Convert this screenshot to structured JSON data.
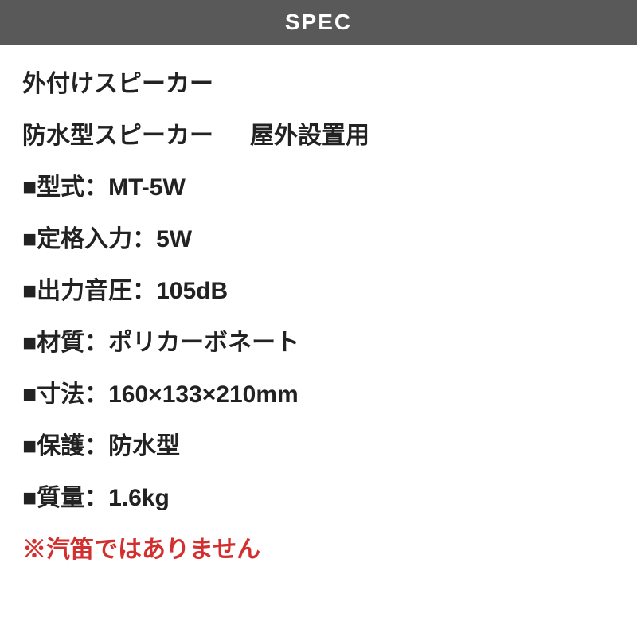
{
  "header": {
    "title": "SPEC",
    "background_color": "#595959",
    "text_color": "#ffffff",
    "fontsize": 28
  },
  "content": {
    "title1": "外付けスピーカー",
    "title2a": "防水型スピーカー",
    "title2b": "屋外設置用",
    "specs": [
      "■型式：MT-5W",
      "■定格入力：5W",
      "■出力音圧：105dB",
      "■材質：ポリカーボネート",
      "■寸法：160×133×210mm",
      "■保護：防水型",
      "■質量：1.6kg"
    ],
    "warning": "※汽笛ではありません",
    "text_color": "#222222",
    "warning_color": "#d32f2f",
    "fontsize": 30,
    "line_height": 1.7
  },
  "background_color": "#ffffff"
}
